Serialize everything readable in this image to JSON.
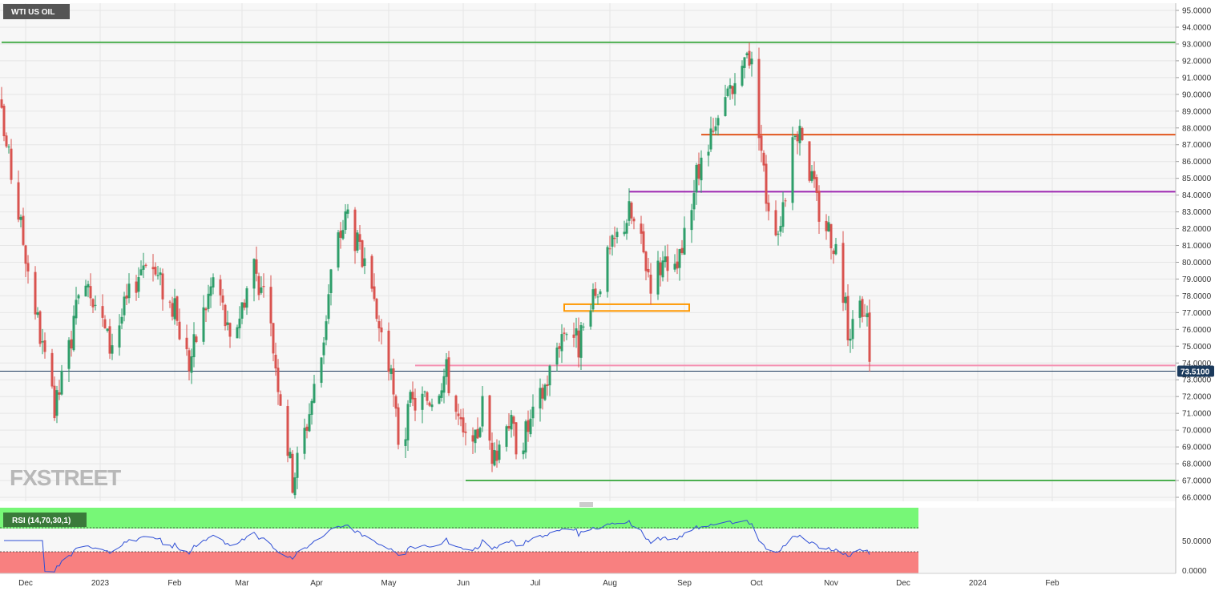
{
  "chart_data": {
    "type": "candlestick",
    "title": "WTI US OIL",
    "watermark": "FXSTREET",
    "price_axis": {
      "ylim": [
        66,
        95
      ],
      "ticks": [
        "95.0000",
        "94.0000",
        "93.0000",
        "92.0000",
        "91.0000",
        "90.0000",
        "89.0000",
        "88.0000",
        "87.0000",
        "86.0000",
        "85.0000",
        "84.0000",
        "83.0000",
        "82.0000",
        "81.0000",
        "80.0000",
        "79.0000",
        "78.0000",
        "77.0000",
        "76.0000",
        "75.0000",
        "74.0000",
        "73.0000",
        "72.0000",
        "71.0000",
        "70.0000",
        "69.0000",
        "68.0000",
        "67.0000",
        "66.0000"
      ]
    },
    "x_axis": {
      "labels": [
        {
          "label": "Dec",
          "day": 10
        },
        {
          "label": "2023",
          "day": 41
        },
        {
          "label": "Feb",
          "day": 72
        },
        {
          "label": "Mar",
          "day": 100
        },
        {
          "label": "Apr",
          "day": 131
        },
        {
          "label": "May",
          "day": 161
        },
        {
          "label": "Jun",
          "day": 192
        },
        {
          "label": "Jul",
          "day": 222
        },
        {
          "label": "Aug",
          "day": 253
        },
        {
          "label": "Sep",
          "day": 284
        },
        {
          "label": "Oct",
          "day": 314
        },
        {
          "label": "Nov",
          "day": 345
        },
        {
          "label": "Dec",
          "day": 375
        },
        {
          "label": "2024",
          "day": 406
        },
        {
          "label": "Feb",
          "day": 437
        }
      ]
    },
    "current_price": {
      "value": 73.51,
      "label": "73.5100",
      "color": "#1b3a5c"
    },
    "up_color": "#2e9e6a",
    "down_color": "#d9534f",
    "levels": [
      {
        "value": 93.1,
        "from_day": 0,
        "color": "#4caf50"
      },
      {
        "value": 87.6,
        "from_day": 291,
        "color": "#e2571e"
      },
      {
        "value": 84.2,
        "from_day": 261,
        "color": "#9c27b0"
      },
      {
        "value": 73.85,
        "from_day": 172,
        "color": "#f48fb1"
      },
      {
        "value": 67.0,
        "from_day": 193,
        "color": "#4caf50"
      }
    ],
    "zone": {
      "from_day": 234,
      "to_day": 286,
      "high": 77.5,
      "low": 77.1,
      "color": "#ff9800"
    },
    "key_points": [
      {
        "day": 0,
        "close": 88.5
      },
      {
        "day": 20,
        "close": 72.5
      },
      {
        "day": 22,
        "close": 71.0
      },
      {
        "day": 35,
        "close": 79.5
      },
      {
        "day": 45,
        "close": 75.0
      },
      {
        "day": 60,
        "close": 80.5
      },
      {
        "day": 72,
        "close": 77.0
      },
      {
        "day": 78,
        "close": 74.0
      },
      {
        "day": 89,
        "close": 79.5
      },
      {
        "day": 95,
        "close": 75.0
      },
      {
        "day": 105,
        "close": 80.0
      },
      {
        "day": 112,
        "close": 76.0
      },
      {
        "day": 118,
        "close": 70.0
      },
      {
        "day": 121,
        "close": 67.0
      },
      {
        "day": 127,
        "close": 70.5
      },
      {
        "day": 133,
        "close": 74.5
      },
      {
        "day": 138,
        "close": 80.5
      },
      {
        "day": 144,
        "close": 83.0
      },
      {
        "day": 150,
        "close": 80.0
      },
      {
        "day": 155,
        "close": 77.0
      },
      {
        "day": 160,
        "close": 75.0
      },
      {
        "day": 166,
        "close": 68.5
      },
      {
        "day": 170,
        "close": 71.5
      },
      {
        "day": 178,
        "close": 72.0
      },
      {
        "day": 185,
        "close": 73.5
      },
      {
        "day": 192,
        "close": 69.5
      },
      {
        "day": 196,
        "close": 68.5
      },
      {
        "day": 200,
        "close": 71.5
      },
      {
        "day": 205,
        "close": 68.0
      },
      {
        "day": 210,
        "close": 71.0
      },
      {
        "day": 215,
        "close": 69.0
      },
      {
        "day": 222,
        "close": 71.0
      },
      {
        "day": 228,
        "close": 73.5
      },
      {
        "day": 232,
        "close": 75.5
      },
      {
        "day": 236,
        "close": 76.5
      },
      {
        "day": 240,
        "close": 75.0
      },
      {
        "day": 245,
        "close": 77.0
      },
      {
        "day": 250,
        "close": 79.5
      },
      {
        "day": 256,
        "close": 81.5
      },
      {
        "day": 261,
        "close": 83.0
      },
      {
        "day": 265,
        "close": 81.5
      },
      {
        "day": 270,
        "close": 79.0
      },
      {
        "day": 275,
        "close": 80.0
      },
      {
        "day": 278,
        "close": 78.5
      },
      {
        "day": 283,
        "close": 80.5
      },
      {
        "day": 288,
        "close": 84.5
      },
      {
        "day": 293,
        "close": 86.5
      },
      {
        "day": 298,
        "close": 88.0
      },
      {
        "day": 303,
        "close": 90.5
      },
      {
        "day": 306,
        "close": 89.5
      },
      {
        "day": 310,
        "close": 93.0
      },
      {
        "day": 313,
        "close": 91.0
      },
      {
        "day": 318,
        "close": 84.0
      },
      {
        "day": 323,
        "close": 82.0
      },
      {
        "day": 328,
        "close": 86.0
      },
      {
        "day": 332,
        "close": 88.5
      },
      {
        "day": 336,
        "close": 85.5
      },
      {
        "day": 340,
        "close": 83.0
      },
      {
        "day": 344,
        "close": 82.0
      },
      {
        "day": 348,
        "close": 80.5
      },
      {
        "day": 352,
        "close": 76.0
      },
      {
        "day": 356,
        "close": 77.0
      },
      {
        "day": 360,
        "close": 76.5
      },
      {
        "day": 362,
        "close": 73.0
      },
      {
        "day": 363,
        "close": 73.5
      }
    ],
    "rsi": {
      "label": "RSI (14,70,30,1)",
      "ticks": [
        "50.0000",
        "0.0000"
      ],
      "overbought_color": "#77f777",
      "oversold_color": "#f88080",
      "line_color": "#2f4fd6"
    }
  }
}
